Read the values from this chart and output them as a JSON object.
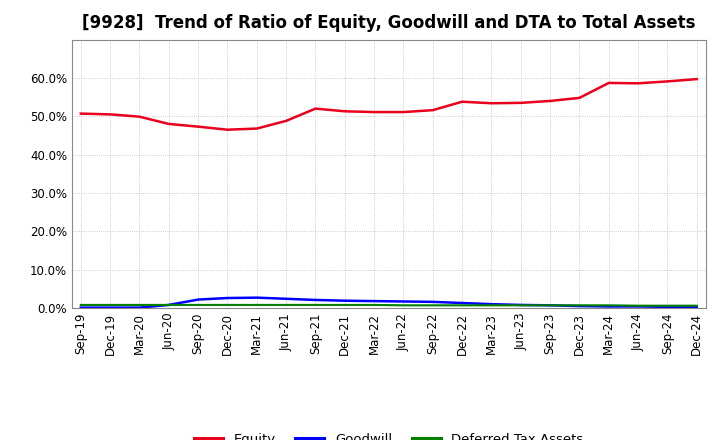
{
  "title": "[9928]  Trend of Ratio of Equity, Goodwill and DTA to Total Assets",
  "x_labels": [
    "Sep-19",
    "Dec-19",
    "Mar-20",
    "Jun-20",
    "Sep-20",
    "Dec-20",
    "Mar-21",
    "Jun-21",
    "Sep-21",
    "Dec-21",
    "Mar-22",
    "Jun-22",
    "Sep-22",
    "Dec-22",
    "Mar-23",
    "Jun-23",
    "Sep-23",
    "Dec-23",
    "Mar-24",
    "Jun-24",
    "Sep-24",
    "Dec-24"
  ],
  "equity": [
    0.507,
    0.505,
    0.499,
    0.48,
    0.473,
    0.465,
    0.468,
    0.488,
    0.52,
    0.513,
    0.511,
    0.511,
    0.516,
    0.538,
    0.534,
    0.535,
    0.54,
    0.548,
    0.587,
    0.586,
    0.591,
    0.597
  ],
  "goodwill": [
    0.001,
    0.001,
    0.001,
    0.008,
    0.022,
    0.026,
    0.027,
    0.024,
    0.021,
    0.019,
    0.018,
    0.017,
    0.016,
    0.013,
    0.01,
    0.008,
    0.007,
    0.005,
    0.004,
    0.004,
    0.003,
    0.002
  ],
  "dta": [
    0.008,
    0.008,
    0.008,
    0.008,
    0.008,
    0.008,
    0.008,
    0.008,
    0.008,
    0.008,
    0.008,
    0.007,
    0.007,
    0.007,
    0.007,
    0.007,
    0.007,
    0.007,
    0.007,
    0.006,
    0.006,
    0.006
  ],
  "equity_color": "#e8001c",
  "goodwill_color": "#0000ff",
  "dta_color": "#008000",
  "ylim": [
    0.0,
    0.7
  ],
  "yticks": [
    0.0,
    0.1,
    0.2,
    0.3,
    0.4,
    0.5,
    0.6
  ],
  "background_color": "#ffffff",
  "plot_bg_color": "#ffffff",
  "grid_color": "#bbbbbb",
  "title_fontsize": 12,
  "tick_fontsize": 8.5,
  "legend_labels": [
    "Equity",
    "Goodwill",
    "Deferred Tax Assets"
  ]
}
